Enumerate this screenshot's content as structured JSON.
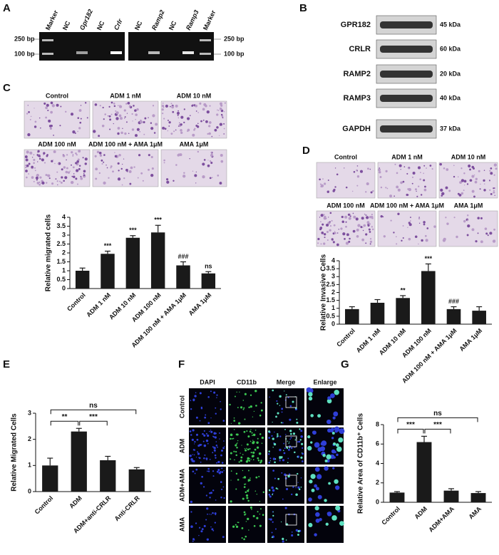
{
  "panel_labels": [
    "A",
    "B",
    "C",
    "D",
    "E",
    "F",
    "G"
  ],
  "gel": {
    "lanes_left": [
      "Marker",
      "NC",
      "Gpr182",
      "NC",
      "Crlr"
    ],
    "lanes_right": [
      "NC",
      "Ramp2",
      "NC",
      "Ramp3",
      "Marker"
    ],
    "size_labels": [
      "250 bp",
      "100 bp"
    ]
  },
  "blot": {
    "rows": [
      {
        "protein": "GPR182",
        "size": "45 kDa"
      },
      {
        "protein": "CRLR",
        "size": "60 kDa"
      },
      {
        "protein": "RAMP2",
        "size": "20 kDa"
      },
      {
        "protein": "RAMP3",
        "size": "40 kDa"
      },
      {
        "protein": "GAPDH",
        "size": "37 kDa"
      }
    ]
  },
  "panel_c_images": [
    "Control",
    "ADM 1 nM",
    "ADM 10 nM",
    "ADM 100 nM",
    "ADM 100 nM + AMA 1μM",
    "AMA 1μM"
  ],
  "panel_d_images": [
    "Control",
    "ADM 1 nM",
    "ADM 10 nM",
    "ADM 100 nM",
    "ADM 100 nM + AMA 1μM",
    "AMA 1μM"
  ],
  "panel_f": {
    "columns": [
      "DAPI",
      "CD11b",
      "Merge",
      "Enlarge"
    ],
    "rows": [
      "Control",
      "ADM",
      "ADM+AMA",
      "AMA"
    ]
  },
  "chart_data": [
    {
      "type": "bar",
      "ylabel": "Relative migrated cells",
      "color": "#1a1a1a",
      "categories": [
        "Control",
        "ADM 1 nM",
        "ADM 10 nM",
        "ADM 100 nM",
        "ADM 100 nM + AMA 1μM",
        "AMA 1μM"
      ],
      "values": [
        1.0,
        1.95,
        2.85,
        3.15,
        1.3,
        0.85
      ],
      "errors": [
        0.15,
        0.15,
        0.12,
        0.4,
        0.2,
        0.1
      ],
      "significance": [
        null,
        "***",
        "***",
        "***",
        "###",
        "ns"
      ],
      "ylim": [
        0,
        4
      ],
      "yticks": [
        0,
        0.5,
        1,
        1.5,
        2,
        2.5,
        3,
        3.5,
        4
      ]
    },
    {
      "type": "bar",
      "ylabel": "Relative Invasive Cells",
      "color": "#1a1a1a",
      "categories": [
        "Control",
        "ADM 1 nM",
        "ADM 10 nM",
        "ADM 100 nM",
        "ADM 100 nM + AMA 1μM",
        "AMA 1μM"
      ],
      "values": [
        0.95,
        1.35,
        1.65,
        3.35,
        0.95,
        0.85
      ],
      "errors": [
        0.15,
        0.2,
        0.15,
        0.45,
        0.15,
        0.25
      ],
      "significance": [
        null,
        null,
        "**",
        "***",
        "###",
        null
      ],
      "ylim": [
        0,
        4
      ],
      "yticks": [
        0,
        0.5,
        1,
        1.5,
        2,
        2.5,
        3,
        3.5,
        4
      ]
    },
    {
      "type": "bar",
      "ylabel": "Relative Migrated Cells",
      "color": "#1a1a1a",
      "categories": [
        "Control",
        "ADM",
        "ADM+anti-CRLR",
        "Anti-CRLR"
      ],
      "values": [
        1.0,
        2.3,
        1.2,
        0.85
      ],
      "errors": [
        0.28,
        0.12,
        0.15,
        0.07
      ],
      "comparisons": [
        {
          "pair": [
            "Control",
            "ADM"
          ],
          "label": "**"
        },
        {
          "pair": [
            "ADM",
            "ADM+anti-CRLR"
          ],
          "label": "***"
        },
        {
          "pair": [
            "Control",
            "Anti-CRLR"
          ],
          "label": "ns"
        }
      ],
      "ylim": [
        0,
        3
      ],
      "yticks": [
        0,
        1,
        2,
        3
      ]
    },
    {
      "type": "bar",
      "ylabel": "Relative Area of CD11b⁺ Cells",
      "color": "#1a1a1a",
      "categories": [
        "Control",
        "ADM",
        "ADM+AMA",
        "AMA"
      ],
      "values": [
        1.0,
        6.2,
        1.2,
        0.95
      ],
      "errors": [
        0.1,
        0.6,
        0.2,
        0.15
      ],
      "comparisons": [
        {
          "pair": [
            "Control",
            "ADM"
          ],
          "label": "***"
        },
        {
          "pair": [
            "ADM",
            "ADM+AMA"
          ],
          "label": "***"
        },
        {
          "pair": [
            "Control",
            "AMA"
          ],
          "label": "ns"
        }
      ],
      "ylim": [
        0,
        8
      ],
      "yticks": [
        0,
        2,
        4,
        6,
        8
      ]
    }
  ]
}
